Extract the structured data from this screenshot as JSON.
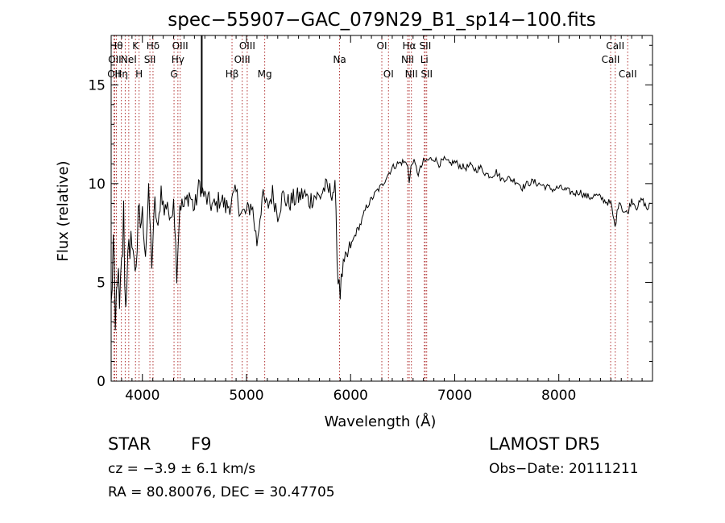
{
  "chart_data": {
    "type": "line",
    "title": "spec−55907−GAC_079N29_B1_sp14−100.fits",
    "xlabel": "Wavelength (Å)",
    "ylabel": "Flux (relative)",
    "xlim": [
      3700,
      8900
    ],
    "ylim": [
      0,
      17.5
    ],
    "xticks": [
      4000,
      5000,
      6000,
      7000,
      8000
    ],
    "xtick_labels": [
      "4000",
      "5000",
      "6000",
      "7000",
      "8000"
    ],
    "yticks": [
      0,
      5,
      10,
      15
    ],
    "ytick_labels": [
      "0",
      "5",
      "10",
      "15"
    ],
    "grid": false,
    "line_color": "#000000",
    "marker_line_color": "#b03030",
    "spike": {
      "x": 4570,
      "y": 17.5
    },
    "series": [
      {
        "x": [
          3700,
          3720,
          3740,
          3760,
          3780,
          3800,
          3820,
          3840,
          3860,
          3880,
          3900,
          3920,
          3940,
          3960,
          3980,
          4000,
          4030,
          4060,
          4090,
          4120,
          4150,
          4180,
          4210,
          4240,
          4270,
          4300,
          4330,
          4360,
          4400,
          4450,
          4500,
          4550,
          4600,
          4650,
          4700,
          4750,
          4800,
          4850,
          4900,
          4950,
          5000,
          5050,
          5100,
          5150,
          5200,
          5250,
          5300,
          5350,
          5400,
          5450,
          5500,
          5550,
          5600,
          5650,
          5700,
          5750,
          5800,
          5850,
          5880,
          5890,
          5900,
          5920,
          5950,
          6000,
          6050,
          6100,
          6150,
          6200,
          6250,
          6300,
          6350,
          6400,
          6450,
          6500,
          6550,
          6563,
          6580,
          6600,
          6650,
          6700,
          6750,
          6800,
          6850,
          6900,
          6950,
          7000,
          7050,
          7100,
          7150,
          7200,
          7250,
          7300,
          7350,
          7400,
          7450,
          7500,
          7550,
          7600,
          7650,
          7700,
          7750,
          7800,
          7850,
          7900,
          7950,
          8000,
          8050,
          8100,
          8150,
          8200,
          8250,
          8300,
          8350,
          8400,
          8450,
          8500,
          8540,
          8580,
          8620,
          8660,
          8700,
          8750,
          8800,
          8850,
          8880
        ],
        "y": [
          3.5,
          7.0,
          2.0,
          6.0,
          3.0,
          5.5,
          8.2,
          3.5,
          7.5,
          5.0,
          8.0,
          5.5,
          6.5,
          7.5,
          8.0,
          8.5,
          6.5,
          9.5,
          6.0,
          9.0,
          7.5,
          9.8,
          8.5,
          9.2,
          7.8,
          9.5,
          5.5,
          9.0,
          8.8,
          9.5,
          8.7,
          10.0,
          9.3,
          9.0,
          8.8,
          9.3,
          8.8,
          9.0,
          9.5,
          8.5,
          8.5,
          9.0,
          7.0,
          9.3,
          8.8,
          9.5,
          8.5,
          9.4,
          9.0,
          9.2,
          9.3,
          9.5,
          9.1,
          9.4,
          9.3,
          9.8,
          9.6,
          9.7,
          5.0,
          5.3,
          4.5,
          5.5,
          6.0,
          6.8,
          7.5,
          8.0,
          8.8,
          9.2,
          9.6,
          9.9,
          10.4,
          10.8,
          11.0,
          11.1,
          11.0,
          10.0,
          10.8,
          11.2,
          10.5,
          11.1,
          11.2,
          11.3,
          11.0,
          11.2,
          11.0,
          11.1,
          10.9,
          10.8,
          10.9,
          10.7,
          10.8,
          10.5,
          10.4,
          10.6,
          10.2,
          10.3,
          10.2,
          10.1,
          9.8,
          10.0,
          10.1,
          10.0,
          9.9,
          9.8,
          9.7,
          9.8,
          9.7,
          9.6,
          9.5,
          9.6,
          9.4,
          9.3,
          9.4,
          9.3,
          9.1,
          9.0,
          7.8,
          9.2,
          8.6,
          8.5,
          9.2,
          8.8,
          9.2,
          8.7,
          9.0
        ]
      }
    ],
    "line_markers": [
      {
        "x": 3727,
        "label": "OII",
        "row": 2
      },
      {
        "x": 3734,
        "label": "OII",
        "row": 1
      },
      {
        "x": 3750,
        "label": "Hθ",
        "row": 0
      },
      {
        "x": 3798,
        "label": "Hη",
        "row": 2
      },
      {
        "x": 3835,
        "label": "",
        "row": -1
      },
      {
        "x": 3869,
        "label": "NeI",
        "row": 1
      },
      {
        "x": 3934,
        "label": "K",
        "row": 0
      },
      {
        "x": 3968,
        "label": "H",
        "row": 2
      },
      {
        "x": 4072,
        "label": "SII",
        "row": 1
      },
      {
        "x": 4102,
        "label": "Hδ",
        "row": 0
      },
      {
        "x": 4304,
        "label": "G",
        "row": 2
      },
      {
        "x": 4341,
        "label": "Hγ",
        "row": 1
      },
      {
        "x": 4363,
        "label": "OIII",
        "row": 0
      },
      {
        "x": 4861,
        "label": "Hβ",
        "row": 2
      },
      {
        "x": 4959,
        "label": "OIII",
        "row": 1
      },
      {
        "x": 5007,
        "label": "OIII",
        "row": 0
      },
      {
        "x": 5175,
        "label": "Mg",
        "row": 2
      },
      {
        "x": 5894,
        "label": "Na",
        "row": 1
      },
      {
        "x": 6300,
        "label": "OI",
        "row": 0
      },
      {
        "x": 6364,
        "label": "OI",
        "row": 2
      },
      {
        "x": 6548,
        "label": "NII",
        "row": 1
      },
      {
        "x": 6563,
        "label": "Hα",
        "row": 0
      },
      {
        "x": 6584,
        "label": "NII",
        "row": 2
      },
      {
        "x": 6708,
        "label": "Li",
        "row": 1
      },
      {
        "x": 6717,
        "label": "SII",
        "row": 0
      },
      {
        "x": 6731,
        "label": "SII",
        "row": 2
      },
      {
        "x": 8498,
        "label": "CaII",
        "row": 1
      },
      {
        "x": 8542,
        "label": "CaII",
        "row": 0
      },
      {
        "x": 8662,
        "label": "CaII",
        "row": 2
      }
    ]
  },
  "info": {
    "class_label": "STAR",
    "subclass_label": "F9",
    "cz_label": "cz = −3.9 ± 6.1 km/s",
    "radec_label": "RA =  80.80076, DEC =  30.47705",
    "survey_label": "LAMOST DR5",
    "obsdate_label": "Obs−Date: 20111211"
  }
}
